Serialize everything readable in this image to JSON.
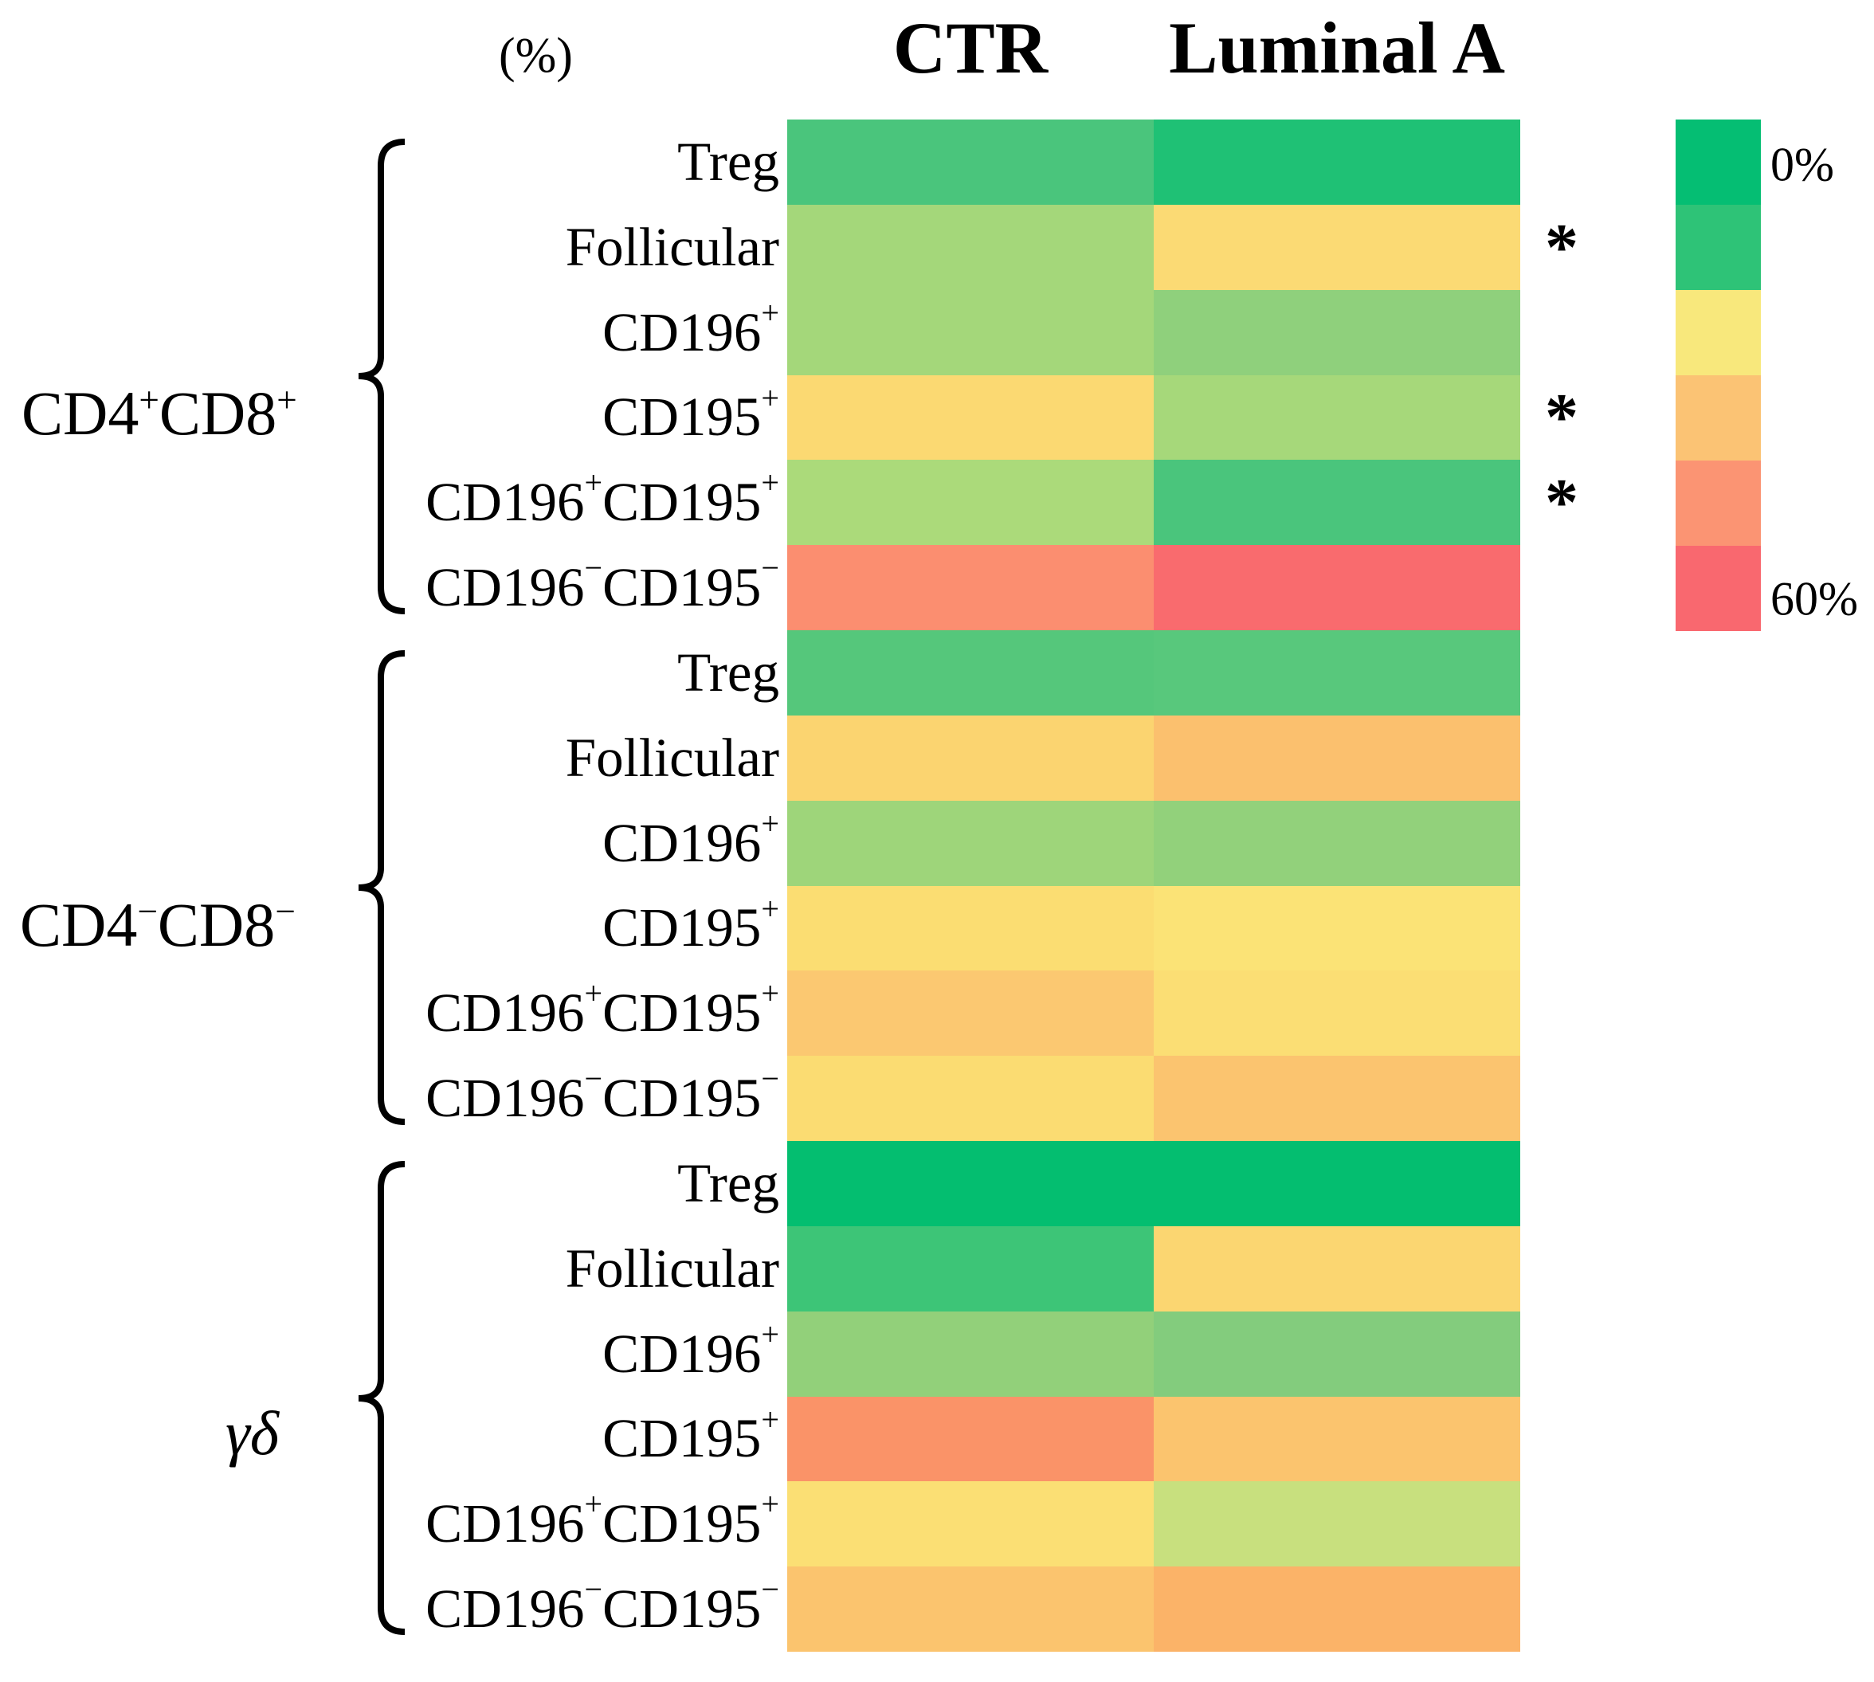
{
  "header": {
    "percent_label": "(%)",
    "columns": [
      "CTR",
      "Luminal A"
    ]
  },
  "legend": {
    "min_label": "0%",
    "max_label": "60%",
    "colors": [
      "#05BE73",
      "#2EC377",
      "#F8E87C",
      "#FBC374",
      "#FB9473",
      "#F9686F"
    ]
  },
  "significance_marker": "*",
  "groups": [
    {
      "name": "CD4+CD8+",
      "label_tokens": [
        {
          "t": "CD4"
        },
        {
          "t": "+",
          "sup": true
        },
        {
          "t": "CD8"
        },
        {
          "t": "+",
          "sup": true
        }
      ]
    },
    {
      "name": "CD4-CD8-",
      "label_tokens": [
        {
          "t": "CD4"
        },
        {
          "t": "−",
          "sup": true
        },
        {
          "t": "CD8"
        },
        {
          "t": "−",
          "sup": true
        }
      ]
    },
    {
      "name": "γδ",
      "label_tokens": [
        {
          "t": "γδ"
        }
      ]
    }
  ],
  "rows": [
    {
      "group": 0,
      "label": "Treg",
      "label_tokens": [
        {
          "t": "Treg"
        }
      ],
      "ctr_color": "#4AC57C",
      "luma_color": "#1FC175",
      "significant": false
    },
    {
      "group": 0,
      "label": "Follicular",
      "label_tokens": [
        {
          "t": "Follicular"
        }
      ],
      "ctr_color": "#A4D77A",
      "luma_color": "#FBDA74",
      "significant": true
    },
    {
      "group": 0,
      "label": "CD196+",
      "label_tokens": [
        {
          "t": "CD196"
        },
        {
          "t": "+",
          "sup": true
        }
      ],
      "ctr_color": "#A4D77A",
      "luma_color": "#8FD07C",
      "significant": false
    },
    {
      "group": 0,
      "label": "CD195+",
      "label_tokens": [
        {
          "t": "CD195"
        },
        {
          "t": "+",
          "sup": true
        }
      ],
      "ctr_color": "#FBD972",
      "luma_color": "#A6D87A",
      "significant": true
    },
    {
      "group": 0,
      "label": "CD196+CD195+",
      "label_tokens": [
        {
          "t": "CD196"
        },
        {
          "t": "+",
          "sup": true
        },
        {
          "t": "CD195"
        },
        {
          "t": "+",
          "sup": true
        }
      ],
      "ctr_color": "#ABDA7A",
      "luma_color": "#4AC57C",
      "significant": true
    },
    {
      "group": 0,
      "label": "CD196-CD195-",
      "label_tokens": [
        {
          "t": "CD196"
        },
        {
          "t": "−",
          "sup": true
        },
        {
          "t": "CD195"
        },
        {
          "t": "−",
          "sup": true
        }
      ],
      "ctr_color": "#FB8E70",
      "luma_color": "#F96B6E",
      "significant": false
    },
    {
      "group": 1,
      "label": "Treg",
      "label_tokens": [
        {
          "t": "Treg"
        }
      ],
      "ctr_color": "#55C77B",
      "luma_color": "#58C87C",
      "significant": false
    },
    {
      "group": 1,
      "label": "Follicular",
      "label_tokens": [
        {
          "t": "Follicular"
        }
      ],
      "ctr_color": "#FBD470",
      "luma_color": "#FBC06E",
      "significant": false
    },
    {
      "group": 1,
      "label": "CD196+",
      "label_tokens": [
        {
          "t": "CD196"
        },
        {
          "t": "+",
          "sup": true
        }
      ],
      "ctr_color": "#9ED57A",
      "luma_color": "#92D17B",
      "significant": false
    },
    {
      "group": 1,
      "label": "CD195+",
      "label_tokens": [
        {
          "t": "CD195"
        },
        {
          "t": "+",
          "sup": true
        }
      ],
      "ctr_color": "#FBDD72",
      "luma_color": "#FBE376",
      "significant": false
    },
    {
      "group": 1,
      "label": "CD196+CD195+",
      "label_tokens": [
        {
          "t": "CD196"
        },
        {
          "t": "+",
          "sup": true
        },
        {
          "t": "CD195"
        },
        {
          "t": "+",
          "sup": true
        }
      ],
      "ctr_color": "#FBC871",
      "luma_color": "#FBDE74",
      "significant": false
    },
    {
      "group": 1,
      "label": "CD196-CD195-",
      "label_tokens": [
        {
          "t": "CD196"
        },
        {
          "t": "−",
          "sup": true
        },
        {
          "t": "CD195"
        },
        {
          "t": "−",
          "sup": true
        }
      ],
      "ctr_color": "#FBDC72",
      "luma_color": "#FBC46F",
      "significant": false
    },
    {
      "group": 2,
      "label": "Treg",
      "label_tokens": [
        {
          "t": "Treg"
        }
      ],
      "ctr_color": "#04BE70",
      "luma_color": "#04BE70",
      "significant": false
    },
    {
      "group": 2,
      "label": "Follicular",
      "label_tokens": [
        {
          "t": "Follicular"
        }
      ],
      "ctr_color": "#3DC577",
      "luma_color": "#FBD671",
      "significant": false
    },
    {
      "group": 2,
      "label": "CD196+",
      "label_tokens": [
        {
          "t": "CD196"
        },
        {
          "t": "+",
          "sup": true
        }
      ],
      "ctr_color": "#92D07A",
      "luma_color": "#83CC7D",
      "significant": false
    },
    {
      "group": 2,
      "label": "CD195+",
      "label_tokens": [
        {
          "t": "CD195"
        },
        {
          "t": "+",
          "sup": true
        }
      ],
      "ctr_color": "#FA9368",
      "luma_color": "#FBC46E",
      "significant": false
    },
    {
      "group": 2,
      "label": "CD196+CD195+",
      "label_tokens": [
        {
          "t": "CD196"
        },
        {
          "t": "+",
          "sup": true
        },
        {
          "t": "CD195"
        },
        {
          "t": "+",
          "sup": true
        }
      ],
      "ctr_color": "#FBDF74",
      "luma_color": "#C8E07E",
      "significant": false
    },
    {
      "group": 2,
      "label": "CD196-CD195-",
      "label_tokens": [
        {
          "t": "CD196"
        },
        {
          "t": "−",
          "sup": true
        },
        {
          "t": "CD195"
        },
        {
          "t": "−",
          "sup": true
        }
      ],
      "ctr_color": "#FBC46E",
      "luma_color": "#FBB368",
      "significant": false
    }
  ],
  "chart_data": {
    "type": "heatmap",
    "unit": "%",
    "columns": [
      "CTR",
      "Luminal A"
    ],
    "row_groups": [
      {
        "group": "CD4+CD8+",
        "rows": [
          "Treg",
          "Follicular",
          "CD196+",
          "CD195+",
          "CD196+CD195+",
          "CD196-CD195-"
        ]
      },
      {
        "group": "CD4-CD8-",
        "rows": [
          "Treg",
          "Follicular",
          "CD196+",
          "CD195+",
          "CD196+CD195+",
          "CD196-CD195-"
        ]
      },
      {
        "group": "γδ",
        "rows": [
          "Treg",
          "Follicular",
          "CD196+",
          "CD195+",
          "CD196+CD195+",
          "CD196-CD195-"
        ]
      }
    ],
    "series": [
      {
        "name": "CTR",
        "approx_values_pct": [
          8,
          18,
          18,
          29,
          19,
          46,
          9,
          30,
          16,
          27,
          33,
          27,
          1,
          7,
          15,
          44,
          26,
          35
        ]
      },
      {
        "name": "Luminal A",
        "approx_values_pct": [
          5,
          29,
          15,
          18,
          8,
          54,
          9,
          35,
          15,
          25,
          27,
          34,
          1,
          30,
          13,
          35,
          21,
          39
        ]
      }
    ],
    "color_scale": {
      "min_pct": 0,
      "max_pct": 60,
      "min_label": "0%",
      "max_label": "60%",
      "legend_colors": [
        "#05BE73",
        "#2EC377",
        "#F8E87C",
        "#FBC374",
        "#FB9473",
        "#F9686F"
      ],
      "legend_position": "right"
    },
    "annotations": [
      {
        "marker": "*",
        "row_group": "CD4+CD8+",
        "row": "Follicular",
        "column_compared": "Luminal A vs CTR"
      },
      {
        "marker": "*",
        "row_group": "CD4+CD8+",
        "row": "CD195+",
        "column_compared": "Luminal A vs CTR"
      },
      {
        "marker": "*",
        "row_group": "CD4+CD8+",
        "row": "CD196+CD195+",
        "column_compared": "Luminal A vs CTR"
      }
    ]
  }
}
